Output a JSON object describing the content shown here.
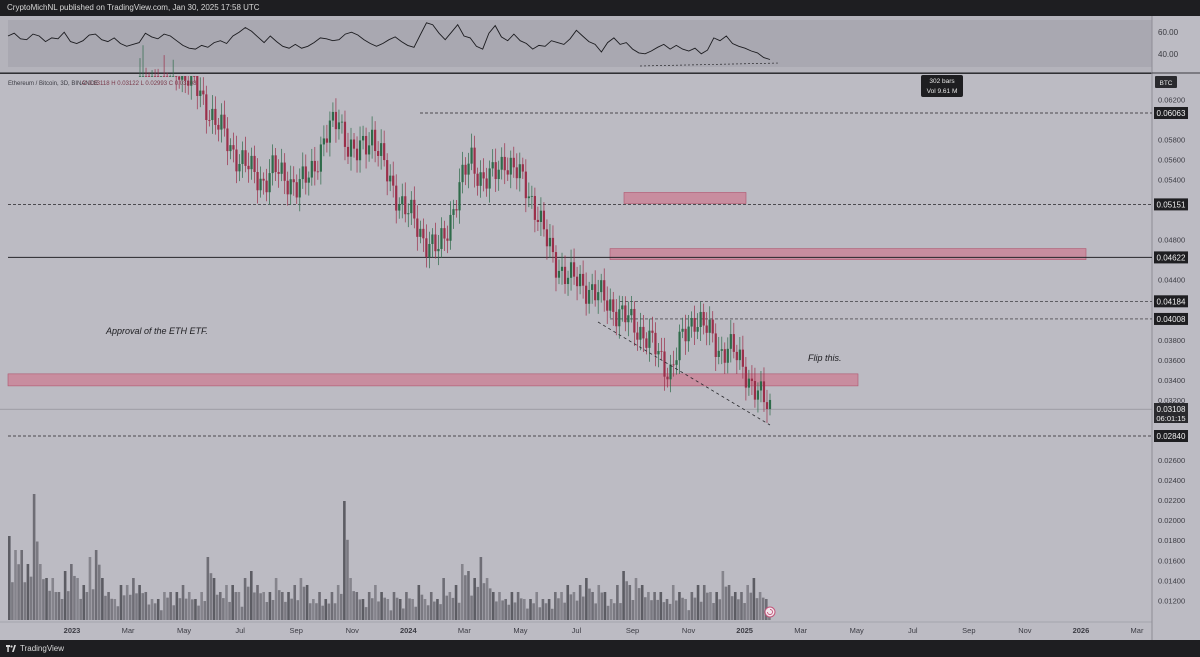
{
  "header": {
    "publish_line": "CryptoMichNL published on TradingView.com, Jan 30, 2025 17:58 UTC"
  },
  "footer": {
    "brand": "TradingView"
  },
  "symbol_info": {
    "text": "Ethereum / Bitcoin, 3D, BINANCE",
    "ohlc_partial": "O 0.03118  H 0.03122  L 0.02993  C 0.03108"
  },
  "tooltip": {
    "bars": "302 bars",
    "vol": "Vol 9.61 M"
  },
  "currency": "BTC",
  "annotations": {
    "etf": "Approval of the ETH ETF.",
    "flip": "Flip this."
  },
  "chart_data": [
    {
      "type": "line",
      "indicator": "RSI",
      "yticks": [
        "60.00",
        "40.00"
      ],
      "yrange": [
        25,
        75
      ],
      "values": [
        58,
        61,
        55,
        54,
        60,
        58,
        52,
        56,
        55,
        62,
        52,
        50,
        53,
        59,
        60,
        54,
        52,
        56,
        50,
        47,
        49,
        51,
        61,
        57,
        55,
        60,
        58,
        53,
        48,
        45,
        44,
        48,
        46,
        51,
        53,
        50,
        58,
        62,
        67,
        63,
        57,
        51,
        58,
        52,
        47,
        45,
        49,
        45,
        47,
        51,
        56,
        55,
        53,
        54,
        60,
        62,
        59,
        54,
        50,
        47,
        50,
        54,
        57,
        52,
        48,
        46,
        59,
        72,
        70,
        61,
        54,
        62,
        70,
        58,
        56,
        47,
        44,
        61,
        69,
        57,
        53,
        60,
        53,
        50,
        44,
        48,
        47,
        53,
        51,
        49,
        55,
        64,
        58,
        52,
        49,
        41,
        51,
        56,
        49,
        51,
        44,
        40,
        39,
        42,
        46,
        49,
        44,
        48,
        44,
        42,
        45,
        39,
        43,
        56,
        53,
        58,
        50,
        47,
        45,
        42,
        40,
        35,
        33
      ]
    },
    {
      "type": "candlestick",
      "title": "Ethereum / Bitcoin, 3D, BINANCE",
      "x_labels": [
        "2023",
        "Mar",
        "May",
        "Jul",
        "Sep",
        "Nov",
        "2024",
        "Mar",
        "May",
        "Jul",
        "Sep",
        "Nov",
        "2025",
        "Mar",
        "May",
        "Jul",
        "Sep",
        "Nov",
        "2026",
        "Mar"
      ],
      "yrange": [
        0.0105,
        0.0645
      ],
      "yticks": [
        "0.06200",
        "0.05800",
        "0.05600",
        "0.05400",
        "0.04800",
        "0.04400",
        "0.03800",
        "0.03600",
        "0.03400",
        "0.03200",
        "0.02600",
        "0.02400",
        "0.02200",
        "0.02000",
        "0.01800",
        "0.01600",
        "0.01400",
        "0.01200"
      ],
      "price_levels": [
        {
          "label": "0.06063",
          "style": "dashed"
        },
        {
          "label": "0.05151",
          "style": "dashed"
        },
        {
          "label": "0.04622",
          "style": "solid"
        },
        {
          "label": "0.04184",
          "style": "dashed"
        },
        {
          "label": "0.04008",
          "style": "dashed"
        },
        {
          "label": "0.02840",
          "style": "dashed"
        }
      ],
      "current_price": {
        "label": "0.03108",
        "countdown": "06:01:15"
      },
      "zones": [
        {
          "from": 0.0516,
          "to": 0.0527
        },
        {
          "from": 0.046,
          "to": 0.0471
        },
        {
          "from": 0.0334,
          "to": 0.0346
        }
      ],
      "close_path": [
        0.0675,
        0.0668,
        0.0672,
        0.0663,
        0.0658,
        0.0648,
        0.064,
        0.0628,
        0.0615,
        0.0598,
        0.0586,
        0.0572,
        0.056,
        0.0551,
        0.0545,
        0.0538,
        0.0548,
        0.0546,
        0.0541,
        0.053,
        0.054,
        0.0556,
        0.0572,
        0.059,
        0.0604,
        0.0575,
        0.056,
        0.0577,
        0.0585,
        0.0562,
        0.054,
        0.0525,
        0.051,
        0.0499,
        0.0485,
        0.0475,
        0.0468,
        0.049,
        0.0518,
        0.0542,
        0.0561,
        0.0544,
        0.0538,
        0.0547,
        0.0562,
        0.055,
        0.054,
        0.0526,
        0.0505,
        0.0478,
        0.046,
        0.0448,
        0.044,
        0.0438,
        0.0433,
        0.0425,
        0.042,
        0.0414,
        0.0405,
        0.0398,
        0.0392,
        0.0385,
        0.0372,
        0.0358,
        0.035,
        0.0372,
        0.0389,
        0.0405,
        0.0394,
        0.0381,
        0.0368,
        0.0375,
        0.0361,
        0.035,
        0.0334,
        0.032,
        0.0311
      ]
    },
    {
      "type": "bar",
      "indicator": "Volume",
      "values": [
        0.6,
        0.5,
        0.5,
        0.4,
        0.9,
        0.4,
        0.3,
        0.3,
        0.2,
        0.35,
        0.4,
        0.3,
        0.25,
        0.45,
        0.5,
        0.3,
        0.2,
        0.15,
        0.25,
        0.25,
        0.3,
        0.25,
        0.2,
        0.15,
        0.15,
        0.2,
        0.2,
        0.2,
        0.25,
        0.2,
        0.15,
        0.2,
        0.45,
        0.3,
        0.2,
        0.25,
        0.25,
        0.2,
        0.3,
        0.35,
        0.25,
        0.2,
        0.2,
        0.3,
        0.2,
        0.2,
        0.25,
        0.3,
        0.25,
        0.15,
        0.2,
        0.15,
        0.2,
        0.25,
        0.85,
        0.3,
        0.2,
        0.15,
        0.2,
        0.25,
        0.2,
        0.15,
        0.2,
        0.15,
        0.2,
        0.15,
        0.25,
        0.15,
        0.2,
        0.15,
        0.3,
        0.2,
        0.25,
        0.4,
        0.35,
        0.3,
        0.45,
        0.3,
        0.2,
        0.2,
        0.15,
        0.2,
        0.2,
        0.15,
        0.15,
        0.2,
        0.15,
        0.15,
        0.2,
        0.2,
        0.25,
        0.2,
        0.25,
        0.3,
        0.2,
        0.25,
        0.2,
        0.15,
        0.25,
        0.35,
        0.25,
        0.3,
        0.25,
        0.2,
        0.2,
        0.2,
        0.15,
        0.25,
        0.2,
        0.15,
        0.2,
        0.25,
        0.25,
        0.2,
        0.2,
        0.35,
        0.25,
        0.2,
        0.2,
        0.25,
        0.3,
        0.2,
        0.15
      ]
    }
  ]
}
